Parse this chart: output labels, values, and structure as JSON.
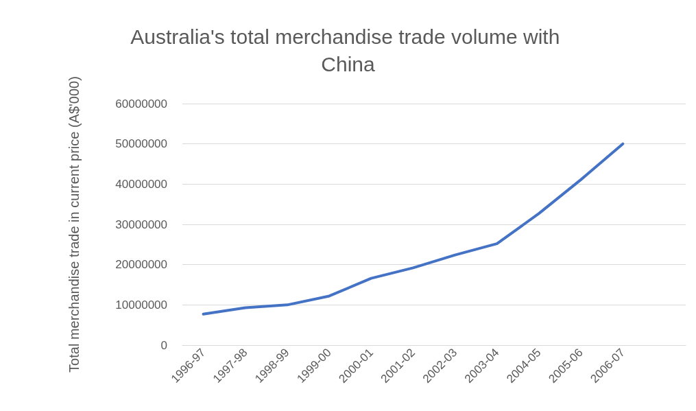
{
  "chart_data": {
    "type": "line",
    "title": "Australia's total merchandise trade volume with China",
    "ylabel": "Total merchandise trade in current price (A$'000)",
    "categories": [
      "1996-97",
      "1997-98",
      "1998-99",
      "1999-00",
      "2000-01",
      "2001-02",
      "2002-03",
      "2003-04",
      "2004-05",
      "2005-06",
      "2006-07",
      null
    ],
    "series": [
      {
        "color": "#4472c4",
        "values": [
          7700000,
          9300000,
          10000000,
          12200000,
          16600000,
          19200000,
          22400000,
          25200000,
          32700000,
          41100000,
          50000000,
          null
        ]
      }
    ],
    "ylim": [
      0,
      60000000
    ],
    "yticks": [
      0,
      10000000,
      20000000,
      30000000,
      40000000,
      50000000,
      60000000
    ],
    "grid": "y",
    "marker": "none",
    "line_style": "solid"
  }
}
